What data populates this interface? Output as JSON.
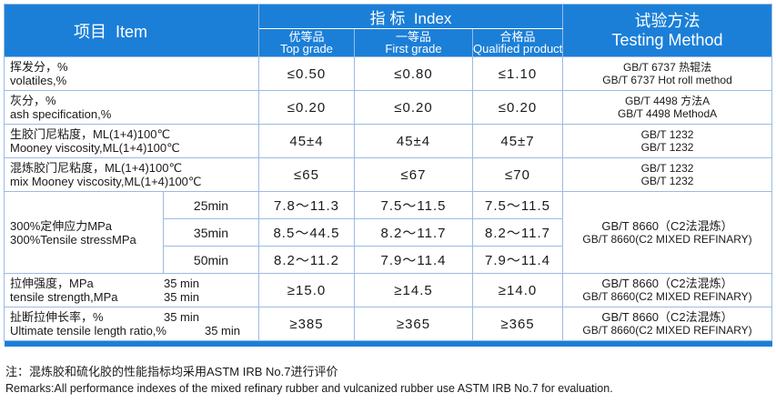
{
  "header": {
    "item_cn": "项目",
    "item_en": "Item",
    "index_cn": "指 标",
    "index_en": "Index",
    "method_cn": "试验方法",
    "method_en": "Testing Method",
    "grades": [
      {
        "cn": "优等品",
        "en": "Top grade"
      },
      {
        "cn": "一等品",
        "en": "First grade"
      },
      {
        "cn": "合格品",
        "en": "Qualified product"
      }
    ]
  },
  "rows": [
    {
      "cn": "挥发分，%",
      "en": "volatiles,%",
      "v1": "≤0.50",
      "v2": "≤0.80",
      "v3": "≤1.10",
      "m1": "GB/T 6737  热辊法",
      "m2": "GB/T 6737  Hot roll method"
    },
    {
      "cn": "灰分，%",
      "en": "ash specification,%",
      "v1": "≤0.20",
      "v2": "≤0.20",
      "v3": "≤0.20",
      "m1": "GB/T 4498  方法A",
      "m2": "GB/T 4498  MethodA"
    },
    {
      "cn": "生胶门尼粘度，ML(1+4)100℃",
      "en": "Mooney viscosity,ML(1+4)100℃",
      "v1": "45±4",
      "v2": "45±4",
      "v3": "45±7",
      "m1": "GB/T 1232",
      "m2": "GB/T 1232"
    },
    {
      "cn": "混炼胶门尼粘度，ML(1+4)100℃",
      "en": "mix Mooney viscosity,ML(1+4)100℃",
      "v1": "≤65",
      "v2": "≤67",
      "v3": "≤70",
      "m1": "GB/T 1232",
      "m2": "GB/T 1232"
    }
  ],
  "tensile_stress": {
    "cn": "300%定伸应力MPa",
    "en": "300%Tensile stressMPa",
    "m1": "GB/T 8660（C2法混炼）",
    "m2": "GB/T 8660(C2 MIXED REFINARY)",
    "subs": [
      {
        "time": "25min",
        "v1": "7.8～11.3",
        "v2": "7.5～11.5",
        "v3": "7.5～11.5"
      },
      {
        "time": "35min",
        "v1": "8.5～44.5",
        "v2": "8.2～11.7",
        "v3": "8.2～11.7"
      },
      {
        "time": "50min",
        "v1": "8.2～11.2",
        "v2": "7.9～11.4",
        "v3": "7.9～11.4"
      }
    ]
  },
  "tensile_strength": {
    "cn": "拉伸强度，MPa",
    "cn_time": "35 min",
    "en": "tensile strength,MPa",
    "en_time": "35 min",
    "v1": "≥15.0",
    "v2": "≥14.5",
    "v3": "≥14.0",
    "m1": "GB/T 8660（C2法混炼）",
    "m2": "GB/T 8660(C2 MIXED REFINARY)"
  },
  "elongation": {
    "cn": "扯断拉伸长率，%",
    "cn_time": "35 min",
    "en": "Ultimate tensile length ratio,%",
    "en_time": "35 min",
    "v1": "≥385",
    "v2": "≥365",
    "v3": "≥365",
    "m1": "GB/T 8660（C2法混炼）",
    "m2": "GB/T 8660(C2 MIXED REFINARY)"
  },
  "remarks": {
    "cn": "注：混炼胶和硫化胶的性能指标均采用ASTM IRB No.7进行评价",
    "en": "Remarks:All performance indexes of the mixed refinary rubber and vulcanized rubber use ASTM IRB No.7 for evaluation."
  },
  "colors": {
    "header_bg": "#1b7fd8",
    "border": "#9bbbe0"
  }
}
